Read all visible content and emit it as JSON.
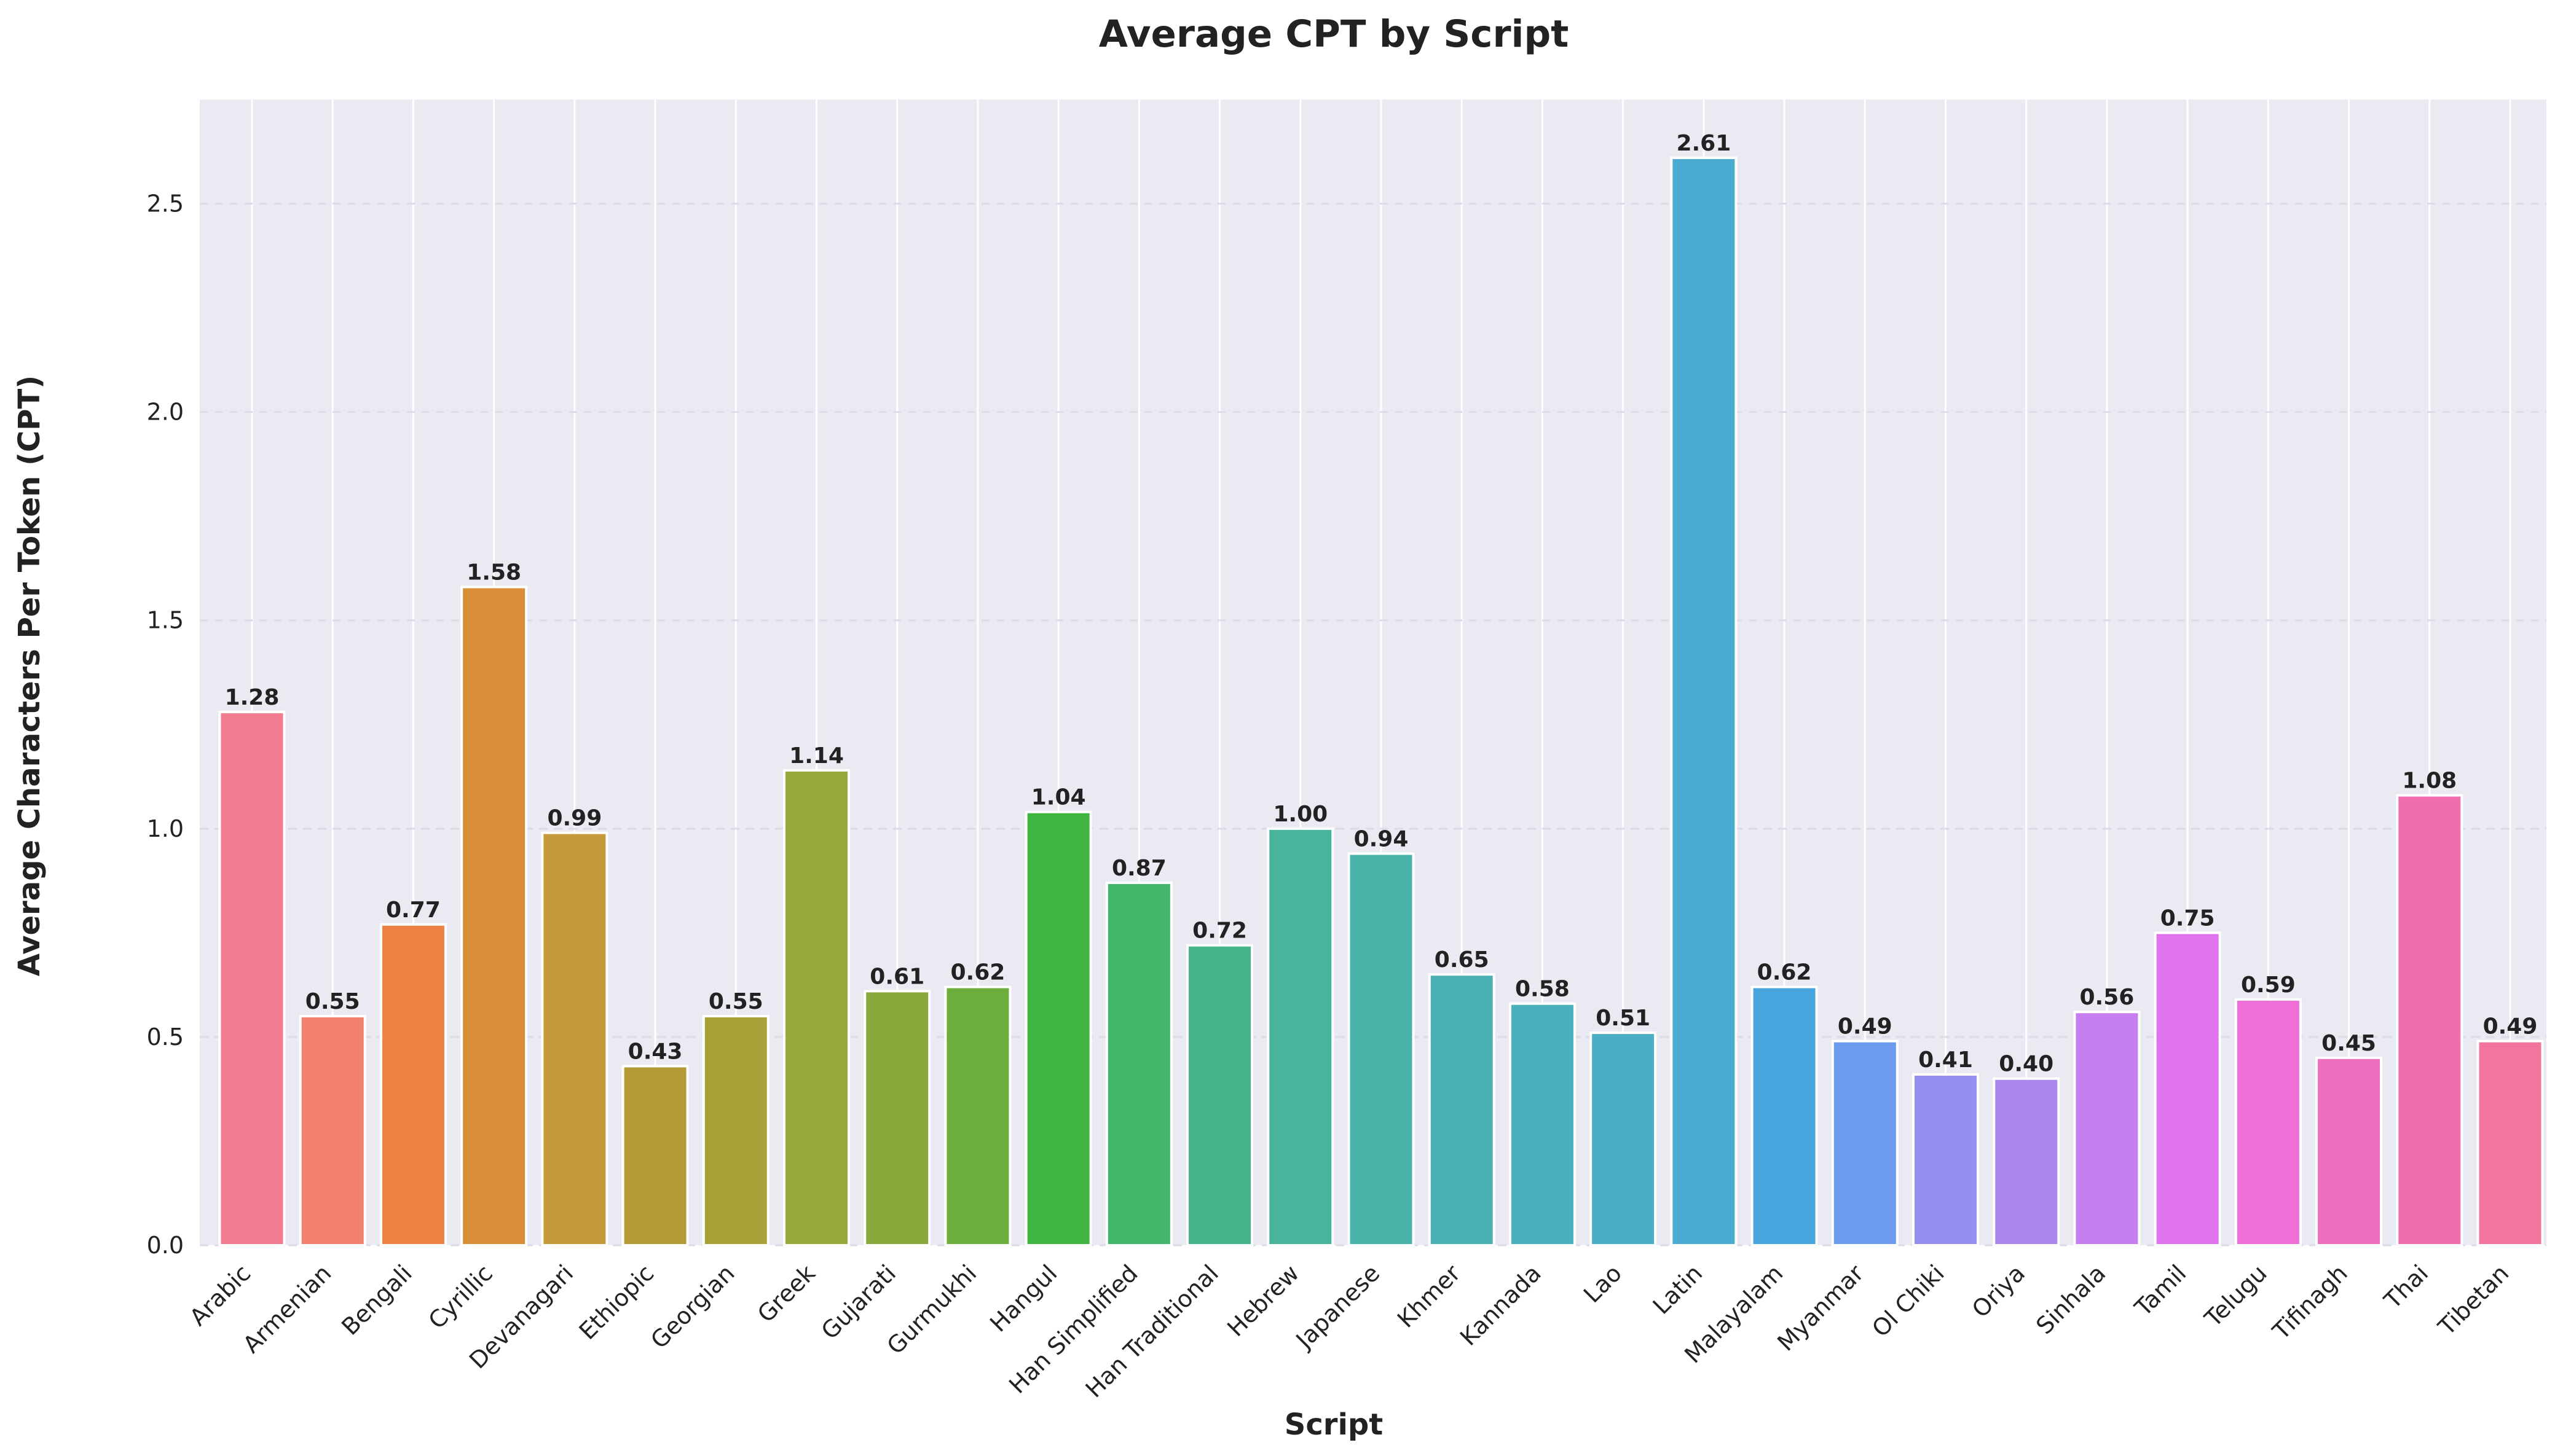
{
  "chart_data": {
    "type": "bar",
    "title": "Average CPT by Script",
    "xlabel": "Script",
    "ylabel": "Average Characters Per Token (CPT)",
    "ylim": [
      0,
      2.75
    ],
    "yticks": [
      "0.0",
      "0.5",
      "1.0",
      "1.5",
      "2.0",
      "2.5"
    ],
    "ytick_values": [
      0,
      0.5,
      1.0,
      1.5,
      2.0,
      2.5
    ],
    "grid": true,
    "categories": [
      "Arabic",
      "Armenian",
      "Bengali",
      "Cyrillic",
      "Devanagari",
      "Ethiopic",
      "Georgian",
      "Greek",
      "Gujarati",
      "Gurmukhi",
      "Hangul",
      "Han Simplified",
      "Han Traditional",
      "Hebrew",
      "Japanese",
      "Khmer",
      "Kannada",
      "Lao",
      "Latin",
      "Malayalam",
      "Myanmar",
      "Ol Chiki",
      "Oriya",
      "Sinhala",
      "Tamil",
      "Telugu",
      "Tifinagh",
      "Thai",
      "Tibetan"
    ],
    "values": [
      1.28,
      0.55,
      0.77,
      1.58,
      0.99,
      0.43,
      0.55,
      1.14,
      0.61,
      0.62,
      1.04,
      0.87,
      0.72,
      1.0,
      0.94,
      0.65,
      0.58,
      0.51,
      2.61,
      0.62,
      0.49,
      0.41,
      0.4,
      0.56,
      0.75,
      0.59,
      0.45,
      1.08,
      0.49
    ],
    "value_labels": [
      "1.28",
      "0.55",
      "0.77",
      "1.58",
      "0.99",
      "0.43",
      "0.55",
      "1.14",
      "0.61",
      "0.62",
      "1.04",
      "0.87",
      "0.72",
      "1.00",
      "0.94",
      "0.65",
      "0.58",
      "0.51",
      "2.61",
      "0.62",
      "0.49",
      "0.41",
      "0.40",
      "0.56",
      "0.75",
      "0.59",
      "0.45",
      "1.08",
      "0.49"
    ],
    "colors": [
      "#f27c8f",
      "#f3806f",
      "#ef8044",
      "#d98f3a",
      "#c59a3a",
      "#b49a36",
      "#a7a238",
      "#99a83b",
      "#88aa3c",
      "#6dad3d",
      "#3fb43e",
      "#43b66b",
      "#46b48a",
      "#48b49c",
      "#49b3aa",
      "#4ab1b4",
      "#4ab0bd",
      "#4aaec6",
      "#4cabd0",
      "#49a5dd",
      "#6d9bee",
      "#958ff0",
      "#ab86ee",
      "#c57def",
      "#e173ee",
      "#ee6fd8",
      "#ef6fbe",
      "#f06eab",
      "#f1759d"
    ],
    "plot_background": "#eaeaf2",
    "grid_color": "#ffffff"
  }
}
